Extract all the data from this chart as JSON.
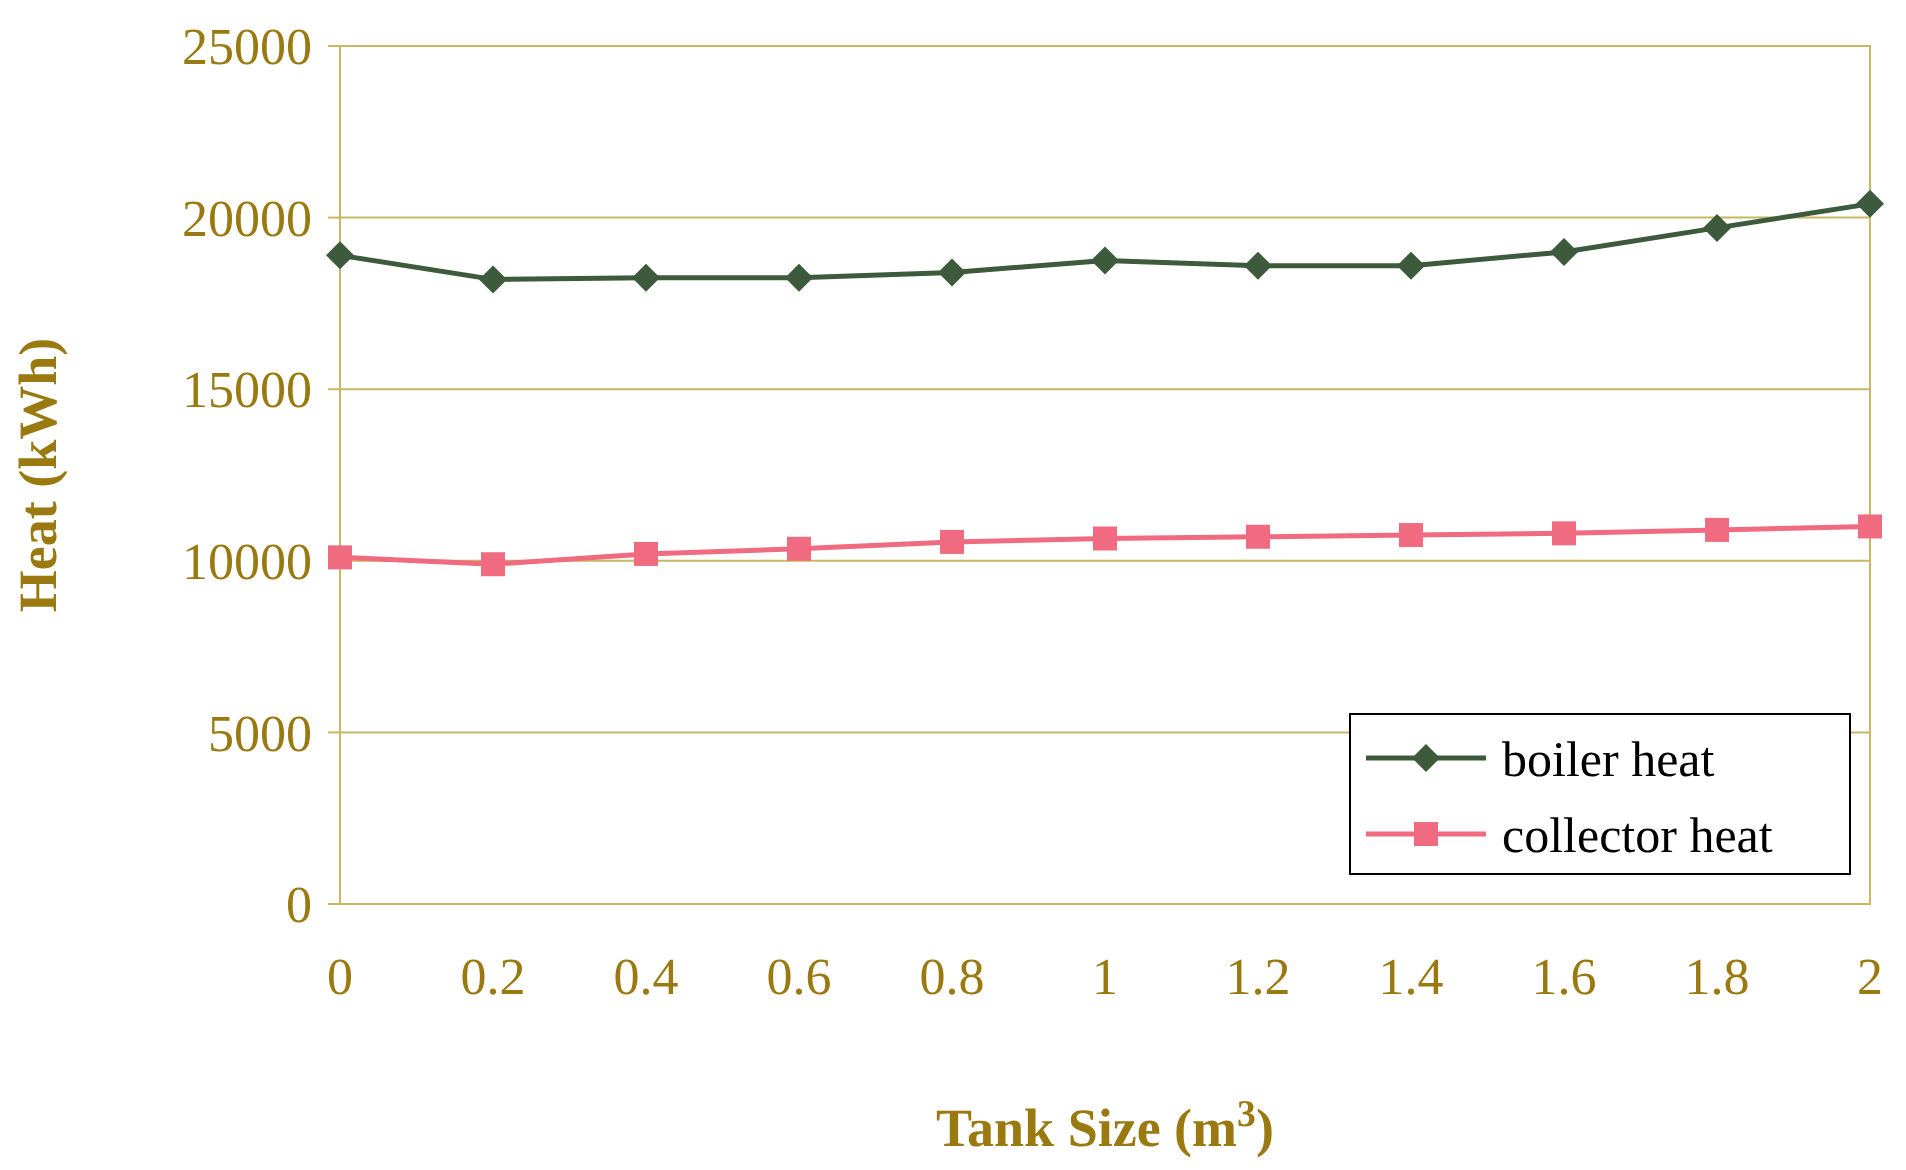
{
  "chart_data": {
    "type": "line",
    "xlabel": "Tank Size (m$^{3}$)",
    "ylabel": "Heat (kWh)",
    "categories": [
      "0",
      "0.2",
      "0.4",
      "0.6",
      "0.8",
      "1",
      "1.2",
      "1.4",
      "1.6",
      "1.8",
      "2"
    ],
    "series": [
      {
        "name": "boiler heat",
        "color": "#3d5a3d",
        "marker": "diamond",
        "values": [
          18900,
          18200,
          18250,
          18250,
          18400,
          18750,
          18600,
          18600,
          19000,
          19700,
          20400
        ]
      },
      {
        "name": "collector heat",
        "color": "#f06a80",
        "marker": "square",
        "values": [
          10100,
          9900,
          10200,
          10350,
          10550,
          10650,
          10700,
          10750,
          10800,
          10900,
          11000
        ]
      }
    ],
    "ylim": [
      0,
      25000
    ],
    "yticks": [
      0,
      5000,
      10000,
      15000,
      20000,
      25000
    ],
    "grid": "y",
    "legend": "bottom right"
  }
}
